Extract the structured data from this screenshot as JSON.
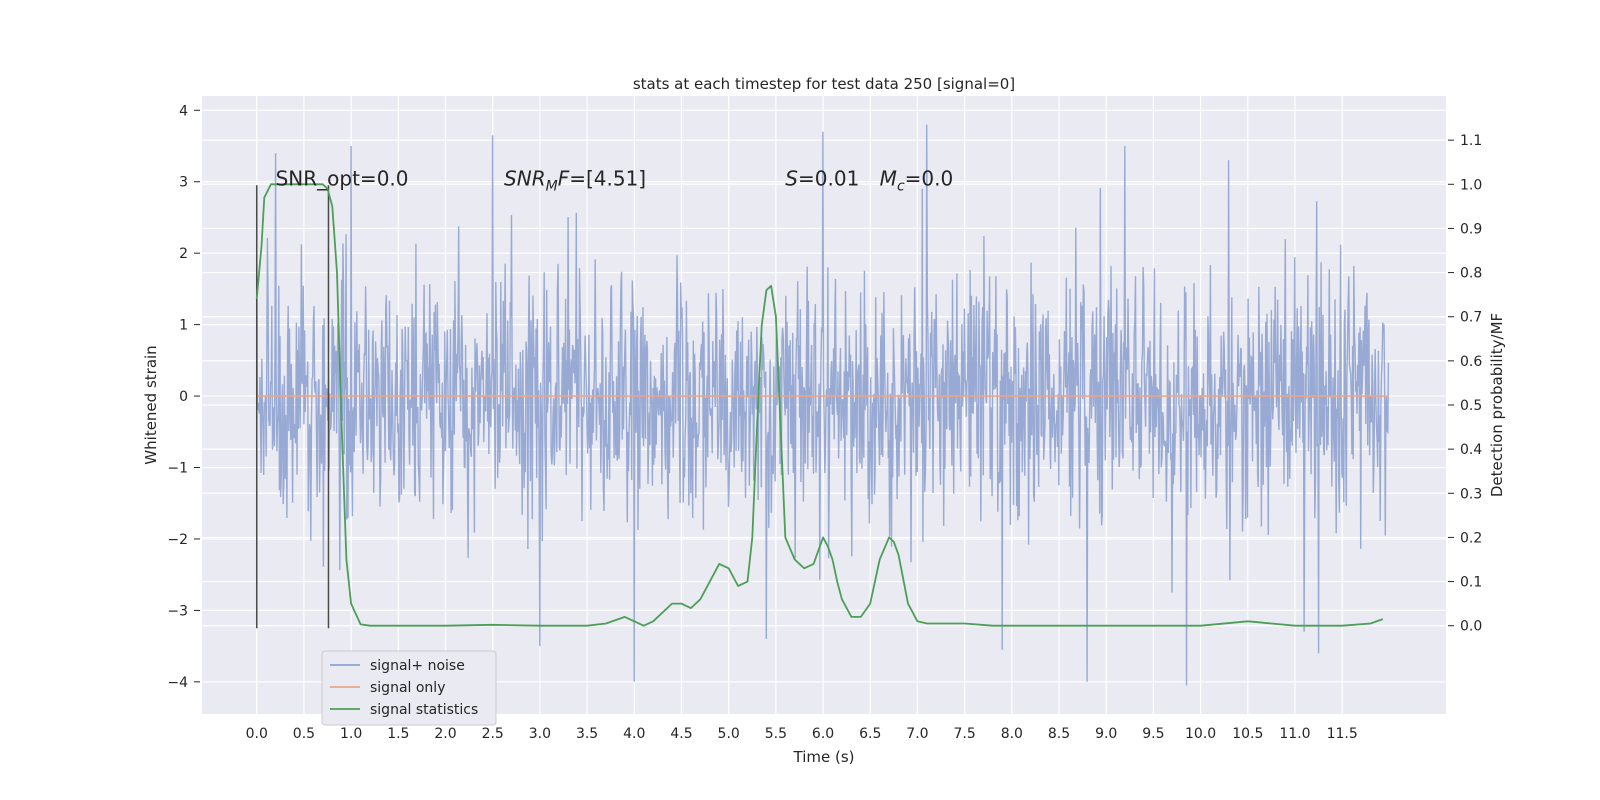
{
  "chart_data": {
    "type": "line",
    "title": "stats at each timestep for test data 250 [signal=0]",
    "xlabel": "Time (s)",
    "ylabel": "Whitened strain",
    "ylabel_right": "Detection probability/MF",
    "xlim": [
      -0.58,
      12.6
    ],
    "ylim": [
      -4.45,
      4.2
    ],
    "ylim_right": [
      -0.2,
      1.2
    ],
    "x_ticks": [
      "0.0",
      "0.5",
      "1.0",
      "1.5",
      "2.0",
      "2.5",
      "3.0",
      "3.5",
      "4.0",
      "4.5",
      "5.0",
      "5.5",
      "6.0",
      "6.5",
      "7.0",
      "7.5",
      "8.0",
      "8.5",
      "9.0",
      "9.5",
      "10.0",
      "10.5",
      "11.0",
      "11.5"
    ],
    "y_ticks": [
      "4",
      "3",
      "2",
      "1",
      "0",
      "−1",
      "−2",
      "−3",
      "−4"
    ],
    "y_ticks_right": [
      "1.1",
      "1.0",
      "0.9",
      "0.8",
      "0.7",
      "0.6",
      "0.5",
      "0.4",
      "0.3",
      "0.2",
      "0.1",
      "0.0"
    ],
    "grid": true,
    "legend_position": "lower-left",
    "series": [
      {
        "name": "signal+ noise",
        "color": "#8fa3d0",
        "axis": "left",
        "kind": "noise",
        "x_range": [
          0.0,
          11.99
        ],
        "std": 0.85,
        "extremes": [
          {
            "x": 2.5,
            "y": 3.65
          },
          {
            "x": 6.0,
            "y": 3.7
          },
          {
            "x": 7.1,
            "y": 3.8
          },
          {
            "x": 0.2,
            "y": 3.4
          },
          {
            "x": 1.0,
            "y": 3.5
          },
          {
            "x": 9.2,
            "y": 3.5
          },
          {
            "x": 10.3,
            "y": 3.3
          },
          {
            "x": 4.0,
            "y": -4.0
          },
          {
            "x": 8.8,
            "y": -4.0
          },
          {
            "x": 9.85,
            "y": -4.05
          },
          {
            "x": 11.25,
            "y": -3.6
          },
          {
            "x": 3.0,
            "y": -3.5
          },
          {
            "x": 5.4,
            "y": -3.4
          },
          {
            "x": 7.9,
            "y": -3.55
          },
          {
            "x": 11.1,
            "y": -3.3
          }
        ]
      },
      {
        "name": "signal only",
        "color": "#e8a68a",
        "axis": "left",
        "x": [
          0.0,
          11.99
        ],
        "y": [
          0.0,
          0.0
        ]
      },
      {
        "name": "signal statistics",
        "color": "#4c9f56",
        "axis": "right",
        "x": [
          0.0,
          0.05,
          0.08,
          0.15,
          0.2,
          0.3,
          0.4,
          0.5,
          0.6,
          0.7,
          0.75,
          0.8,
          0.85,
          0.9,
          0.95,
          1.0,
          1.1,
          1.2,
          1.5,
          2.0,
          2.5,
          3.0,
          3.5,
          3.7,
          3.9,
          4.1,
          4.2,
          4.4,
          4.5,
          4.55,
          4.6,
          4.7,
          4.8,
          4.9,
          5.0,
          5.1,
          5.2,
          5.25,
          5.3,
          5.35,
          5.4,
          5.45,
          5.5,
          5.55,
          5.6,
          5.7,
          5.8,
          5.9,
          5.95,
          6.0,
          6.05,
          6.1,
          6.15,
          6.2,
          6.3,
          6.4,
          6.5,
          6.6,
          6.7,
          6.75,
          6.8,
          6.9,
          7.0,
          7.1,
          7.3,
          7.5,
          7.8,
          8.0,
          8.5,
          9.0,
          9.5,
          10.0,
          10.5,
          11.0,
          11.5,
          11.8,
          11.93
        ],
        "y": [
          0.74,
          0.86,
          0.97,
          1.0,
          1.0,
          1.0,
          1.0,
          1.0,
          1.0,
          1.0,
          0.99,
          0.95,
          0.8,
          0.45,
          0.15,
          0.05,
          0.003,
          0.0,
          0.0,
          0.0,
          0.002,
          0.0,
          0.0,
          0.005,
          0.02,
          0.0,
          0.01,
          0.05,
          0.05,
          0.045,
          0.04,
          0.06,
          0.1,
          0.14,
          0.13,
          0.09,
          0.1,
          0.2,
          0.45,
          0.68,
          0.76,
          0.77,
          0.7,
          0.45,
          0.2,
          0.15,
          0.13,
          0.14,
          0.17,
          0.2,
          0.18,
          0.15,
          0.1,
          0.06,
          0.02,
          0.02,
          0.05,
          0.15,
          0.2,
          0.19,
          0.16,
          0.05,
          0.01,
          0.005,
          0.005,
          0.005,
          0.0,
          0.0,
          0.0,
          0.0,
          0.0,
          0.0,
          0.01,
          0.0,
          0.0,
          0.005,
          0.015
        ]
      }
    ],
    "vlines": [
      {
        "x": 0.0,
        "y_range": [
          -3.25,
          2.95
        ],
        "color": "#4a4a4a"
      },
      {
        "x": 0.76,
        "y_range": [
          -3.25,
          2.95
        ],
        "color": "#4a4a4a"
      }
    ],
    "annotations": [
      {
        "key": "snr_opt",
        "text": "SNR_opt=0.0",
        "x": 0.2,
        "y": 3.0
      },
      {
        "key": "snr_mf",
        "parts": [
          "SNR",
          "M",
          "F=[4.51]"
        ],
        "x": 2.62,
        "y": 3.0
      },
      {
        "key": "s",
        "parts": [
          "S",
          "=0.01"
        ],
        "x": 5.6,
        "y": 3.0
      },
      {
        "key": "mc",
        "parts": [
          "M",
          "c",
          "=0.0"
        ],
        "x": 6.6,
        "y": 3.0
      }
    ]
  }
}
